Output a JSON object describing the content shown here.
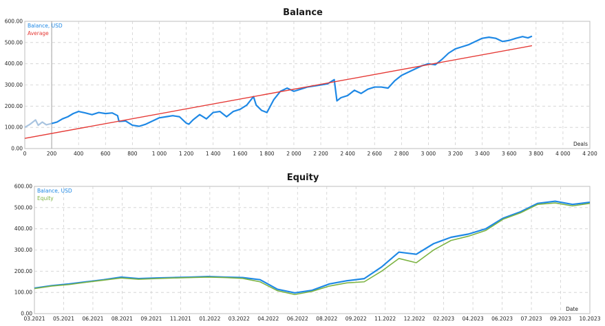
{
  "chart_data": [
    {
      "type": "line",
      "title": "Balance",
      "xlabel": "Deals",
      "ylabel": "",
      "xlim": [
        0,
        4200
      ],
      "ylim": [
        0,
        600
      ],
      "x_ticks": [
        "0",
        "200",
        "400",
        "600",
        "800",
        "1 000",
        "1 200",
        "1 400",
        "1 600",
        "1 800",
        "2 000",
        "2 200",
        "2 400",
        "2 600",
        "2 800",
        "3 000",
        "3 200",
        "3 400",
        "3 600",
        "3 800",
        "4 000",
        "4 200"
      ],
      "x_tick_values": [
        0,
        200,
        400,
        600,
        800,
        1000,
        1200,
        1400,
        1600,
        1800,
        2000,
        2200,
        2400,
        2600,
        2800,
        3000,
        3200,
        3400,
        3600,
        3800,
        4000,
        4200
      ],
      "y_ticks": [
        "0.00",
        "100.00",
        "200.00",
        "300.00",
        "400.00",
        "500.00",
        "600.00"
      ],
      "y_tick_values": [
        0,
        100,
        200,
        300,
        400,
        500,
        600
      ],
      "grid": true,
      "legend_position": "top-left",
      "marker_x": 200,
      "series": [
        {
          "name": "Balance, USD",
          "color": "#1e88e5",
          "pre_marker_color": "#a9c4e0",
          "x": [
            0,
            40,
            80,
            100,
            130,
            160,
            200,
            240,
            280,
            320,
            360,
            400,
            450,
            500,
            550,
            600,
            650,
            690,
            700,
            750,
            800,
            850,
            900,
            950,
            1000,
            1050,
            1100,
            1150,
            1200,
            1220,
            1250,
            1300,
            1350,
            1400,
            1450,
            1500,
            1550,
            1600,
            1650,
            1700,
            1720,
            1760,
            1800,
            1850,
            1900,
            1950,
            2000,
            2050,
            2100,
            2150,
            2200,
            2250,
            2300,
            2320,
            2350,
            2400,
            2450,
            2500,
            2550,
            2600,
            2650,
            2700,
            2750,
            2800,
            2850,
            2900,
            2950,
            3000,
            3050,
            3100,
            3150,
            3200,
            3250,
            3300,
            3350,
            3400,
            3450,
            3500,
            3550,
            3600,
            3650,
            3700,
            3740,
            3770
          ],
          "values": [
            100,
            115,
            135,
            110,
            125,
            112,
            118,
            125,
            140,
            150,
            165,
            175,
            168,
            160,
            170,
            165,
            168,
            155,
            128,
            130,
            110,
            105,
            115,
            130,
            145,
            150,
            155,
            150,
            120,
            115,
            135,
            160,
            140,
            170,
            175,
            150,
            175,
            185,
            205,
            245,
            205,
            180,
            170,
            230,
            270,
            285,
            270,
            280,
            290,
            295,
            300,
            305,
            325,
            225,
            240,
            250,
            275,
            260,
            280,
            290,
            290,
            285,
            320,
            345,
            360,
            375,
            390,
            400,
            395,
            420,
            450,
            470,
            480,
            490,
            505,
            520,
            525,
            520,
            505,
            510,
            520,
            528,
            522,
            530
          ]
        },
        {
          "name": "Average",
          "color": "#e53935",
          "x": [
            0,
            3770
          ],
          "values": [
            48,
            485
          ]
        }
      ]
    },
    {
      "type": "line",
      "title": "Equity",
      "xlabel": "Date",
      "ylabel": "",
      "xlim": [
        0,
        32
      ],
      "ylim": [
        0,
        600
      ],
      "x_ticks": [
        "03.2021",
        "05.2021",
        "06.2021",
        "08.2021",
        "09.2021",
        "11.2021",
        "01.2022",
        "03.2022",
        "04.2022",
        "06.2022",
        "08.2022",
        "09.2022",
        "11.2022",
        "12.2022",
        "02.2023",
        "04.2023",
        "06.2023",
        "07.2023",
        "09.2023",
        "10.2023"
      ],
      "y_ticks": [
        "0.00",
        "100.00",
        "200.00",
        "300.00",
        "400.00",
        "500.00",
        "600.00"
      ],
      "y_tick_values": [
        0,
        100,
        200,
        300,
        400,
        500,
        600
      ],
      "grid": true,
      "legend_position": "top-left",
      "series": [
        {
          "name": "Balance, USD",
          "color": "#1e88e5",
          "x": [
            0,
            1,
            2,
            3,
            4,
            5,
            6,
            7,
            8,
            9,
            10,
            11,
            12,
            13,
            14,
            15,
            16,
            17,
            18,
            19,
            20,
            21,
            22,
            23,
            24,
            25,
            26,
            27,
            28,
            29,
            30,
            31,
            32
          ],
          "values": [
            120,
            132,
            140,
            150,
            160,
            172,
            165,
            168,
            170,
            172,
            175,
            172,
            170,
            160,
            115,
            98,
            110,
            140,
            155,
            165,
            220,
            290,
            280,
            330,
            360,
            375,
            400,
            450,
            480,
            520,
            530,
            515,
            525
          ]
        },
        {
          "name": "Equity",
          "color": "#7cb342",
          "x": [
            0,
            1,
            2,
            3,
            4,
            5,
            6,
            7,
            8,
            9,
            10,
            11,
            12,
            13,
            14,
            15,
            16,
            17,
            18,
            19,
            20,
            21,
            22,
            23,
            24,
            25,
            26,
            27,
            28,
            29,
            30,
            31,
            32
          ],
          "values": [
            118,
            130,
            137,
            148,
            158,
            168,
            162,
            165,
            168,
            170,
            172,
            170,
            166,
            150,
            108,
            90,
            105,
            130,
            145,
            150,
            200,
            260,
            240,
            300,
            345,
            365,
            392,
            445,
            475,
            515,
            522,
            508,
            520
          ]
        }
      ]
    }
  ]
}
